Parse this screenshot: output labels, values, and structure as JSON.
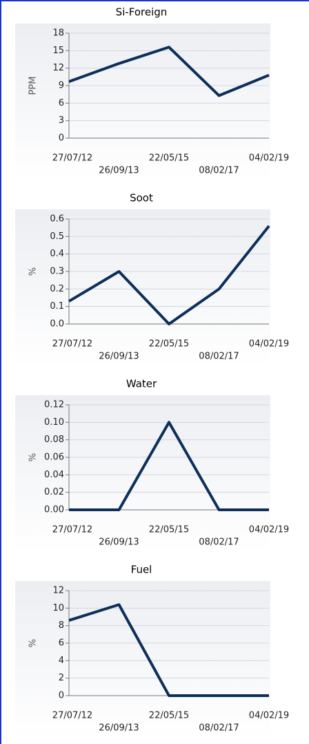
{
  "chart_data": [
    {
      "type": "line",
      "title": "Si-Foreign",
      "y_label": "PPM",
      "categories": [
        "27/07/12",
        "26/09/13",
        "22/05/15",
        "08/02/17",
        "04/02/19"
      ],
      "series": [
        {
          "color": "#0d2f5a",
          "values": [
            9.7,
            12.8,
            15.6,
            7.3,
            10.8
          ]
        }
      ],
      "ylim": [
        0,
        18
      ],
      "yticks": [
        0,
        3,
        6,
        9,
        12,
        15,
        18
      ],
      "grid": true
    },
    {
      "type": "line",
      "title": "Soot",
      "y_label": "%",
      "categories": [
        "27/07/12",
        "26/09/13",
        "22/05/15",
        "08/02/17",
        "04/02/19"
      ],
      "series": [
        {
          "color": "#0d2f5a",
          "values": [
            0.13,
            0.3,
            0,
            0.2,
            0.56
          ]
        }
      ],
      "ylim": [
        0,
        0.6
      ],
      "yticks": [
        {
          "value": 0,
          "label": "0.0"
        },
        0.1,
        0.2,
        0.3,
        0.4,
        0.5,
        0.6
      ],
      "grid": true
    },
    {
      "type": "line",
      "title": "Water",
      "y_label": "%",
      "categories": [
        "27/07/12",
        "26/09/13",
        "22/05/15",
        "08/02/17",
        "04/02/19"
      ],
      "series": [
        {
          "color": "#0d2f5a",
          "values": [
            0,
            0,
            0.1,
            0,
            0
          ]
        }
      ],
      "ylim": [
        0,
        0.12
      ],
      "yticks": [
        {
          "value": 0,
          "label": "0.00"
        },
        {
          "value": 0.02,
          "label": "0.02"
        },
        {
          "value": 0.04,
          "label": "0.04"
        },
        {
          "value": 0.06,
          "label": "0.06"
        },
        {
          "value": 0.08,
          "label": "0.08"
        },
        {
          "value": 0.1,
          "label": "0.10"
        },
        {
          "value": 0.12,
          "label": "0.12"
        }
      ],
      "grid": true
    },
    {
      "type": "line",
      "title": "Fuel",
      "y_label": "%",
      "categories": [
        "27/07/12",
        "26/09/13",
        "22/05/15",
        "08/02/17",
        "04/02/19"
      ],
      "series": [
        {
          "color": "#0d2f5a",
          "values": [
            8.6,
            10.4,
            0,
            0,
            0
          ]
        }
      ],
      "ylim": [
        0,
        12
      ],
      "yticks": [
        0,
        2,
        4,
        6,
        8,
        10,
        12
      ],
      "grid": true
    }
  ]
}
